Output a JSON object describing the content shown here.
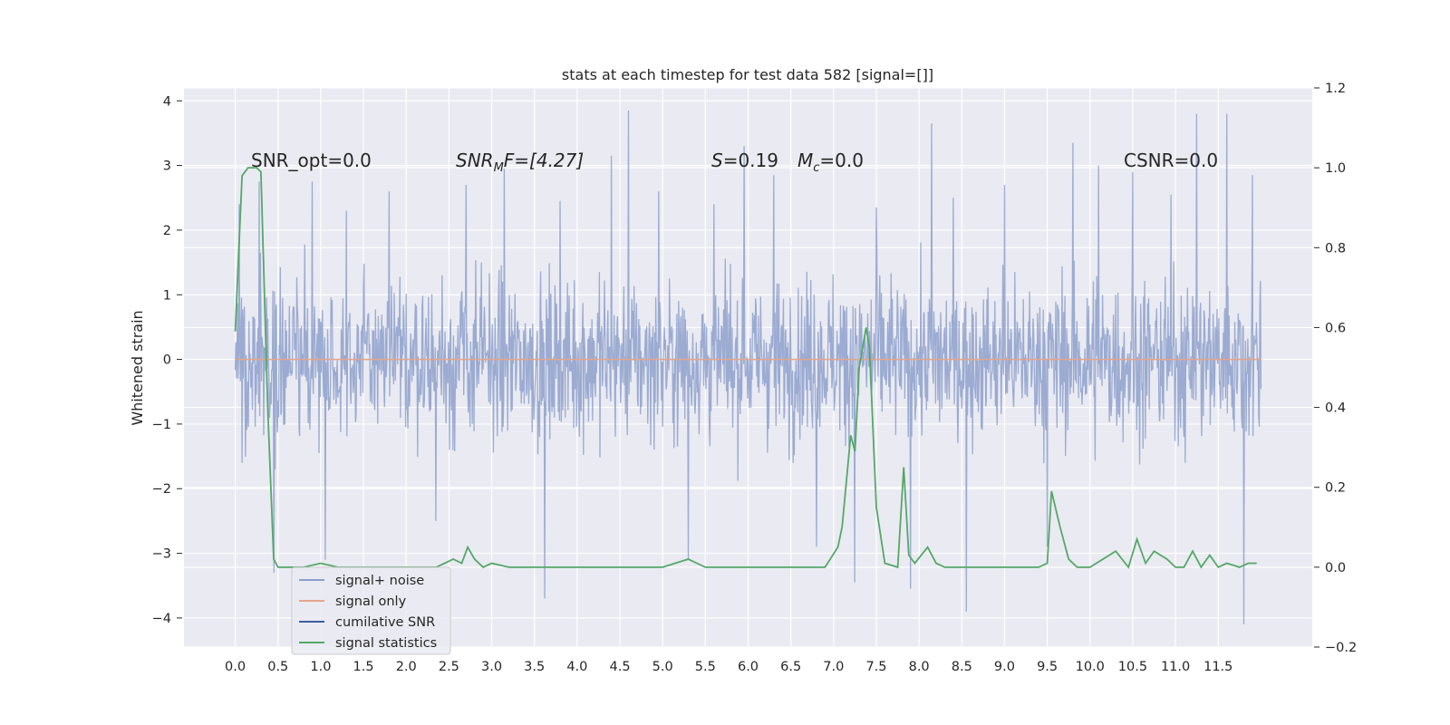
{
  "chart_data": {
    "type": "line",
    "title": "stats at each timestep for test data 582 [signal=[]]",
    "ylabel": "Whitened strain",
    "xlim": [
      -0.6,
      12.6
    ],
    "ylim": [
      -4.45,
      4.2
    ],
    "y2lim": [
      -0.2,
      1.2
    ],
    "x_ticks": [
      "0.0",
      "0.5",
      "1.0",
      "1.5",
      "2.0",
      "2.5",
      "3.0",
      "3.5",
      "4.0",
      "4.5",
      "5.0",
      "5.5",
      "6.0",
      "6.5",
      "7.0",
      "7.5",
      "8.0",
      "8.5",
      "9.0",
      "9.5",
      "10.0",
      "10.5",
      "11.0",
      "11.5"
    ],
    "y_ticks": [
      "4",
      "3",
      "2",
      "1",
      "0",
      "−1",
      "−2",
      "−3",
      "−4"
    ],
    "y2_ticks": [
      "1.2",
      "1.0",
      "0.8",
      "0.6",
      "0.4",
      "0.2",
      "0.0",
      "−0.2"
    ],
    "grid": true,
    "legend_placement": "lower-left",
    "annotations": {
      "snr_opt": "SNR_opt=0.0",
      "snr_mf_pre": "SNR",
      "snr_mf_sub": "M",
      "snr_mf_post": "F=[4.27]",
      "s_var": "S",
      "s_val": "=0.19",
      "mc_var": "M",
      "mc_sub": "c",
      "mc_val": "=0.0",
      "csnr": "CSNR=0.0"
    },
    "series": [
      {
        "name": "signal+ noise",
        "color": "#8da0cb",
        "axis": "left",
        "x_range": [
          0.0,
          12.0
        ],
        "envelope": {
          "typical_low": -1.8,
          "typical_high": 1.8
        },
        "spikes": [
          [
            0.05,
            2.4
          ],
          [
            0.08,
            -1.6
          ],
          [
            0.28,
            2.75
          ],
          [
            0.45,
            -3.3
          ],
          [
            0.9,
            2.75
          ],
          [
            1.05,
            -3.1
          ],
          [
            1.3,
            2.3
          ],
          [
            1.8,
            2.6
          ],
          [
            2.35,
            -2.5
          ],
          [
            2.7,
            2.7
          ],
          [
            3.15,
            2.95
          ],
          [
            3.62,
            -3.7
          ],
          [
            3.8,
            2.45
          ],
          [
            4.4,
            3.15
          ],
          [
            4.6,
            3.85
          ],
          [
            4.95,
            2.6
          ],
          [
            5.3,
            -3.1
          ],
          [
            5.6,
            2.4
          ],
          [
            5.95,
            3.3
          ],
          [
            6.3,
            2.85
          ],
          [
            6.8,
            -2.9
          ],
          [
            7.25,
            -3.45
          ],
          [
            7.5,
            2.35
          ],
          [
            7.9,
            -3.55
          ],
          [
            8.15,
            3.65
          ],
          [
            8.4,
            2.5
          ],
          [
            8.55,
            -3.9
          ],
          [
            9.0,
            2.7
          ],
          [
            9.5,
            -2.9
          ],
          [
            9.8,
            3.35
          ],
          [
            10.1,
            3.0
          ],
          [
            10.5,
            2.9
          ],
          [
            10.95,
            2.55
          ],
          [
            11.25,
            3.8
          ],
          [
            11.6,
            3.8
          ],
          [
            11.8,
            -4.1
          ],
          [
            11.9,
            2.85
          ]
        ]
      },
      {
        "name": "signal only",
        "color": "#e5a58a",
        "axis": "left",
        "x": [
          0.0,
          12.0
        ],
        "y": [
          0.0,
          0.0
        ]
      },
      {
        "name": "cumilative SNR",
        "color": "#3a5fa0",
        "axis": "right",
        "x": [],
        "y": []
      },
      {
        "name": "signal statistics",
        "color": "#55a868",
        "axis": "right",
        "x": [
          0.0,
          0.08,
          0.15,
          0.25,
          0.3,
          0.38,
          0.45,
          0.5,
          0.6,
          0.8,
          1.0,
          1.2,
          1.5,
          1.8,
          2.0,
          2.2,
          2.35,
          2.45,
          2.55,
          2.65,
          2.72,
          2.8,
          2.9,
          3.0,
          3.2,
          3.5,
          4.0,
          4.3,
          4.6,
          5.0,
          5.3,
          5.5,
          5.8,
          6.0,
          6.3,
          6.6,
          6.9,
          7.05,
          7.1,
          7.2,
          7.25,
          7.3,
          7.38,
          7.42,
          7.5,
          7.6,
          7.75,
          7.82,
          7.88,
          7.95,
          8.1,
          8.2,
          8.3,
          8.5,
          9.0,
          9.4,
          9.5,
          9.55,
          9.65,
          9.75,
          9.85,
          10.0,
          10.3,
          10.45,
          10.55,
          10.65,
          10.75,
          10.9,
          11.0,
          11.1,
          11.2,
          11.3,
          11.4,
          11.5,
          11.6,
          11.75,
          11.85,
          11.95
        ],
        "y": [
          0.59,
          0.98,
          1.0,
          1.0,
          0.99,
          0.4,
          0.02,
          0.0,
          0.0,
          0.0,
          0.01,
          0.0,
          0.0,
          0.0,
          0.0,
          0.0,
          0.0,
          0.01,
          0.02,
          0.01,
          0.05,
          0.02,
          0.0,
          0.01,
          0.0,
          0.0,
          0.0,
          0.0,
          0.0,
          0.0,
          0.02,
          0.0,
          0.0,
          0.0,
          0.0,
          0.0,
          0.0,
          0.05,
          0.1,
          0.33,
          0.29,
          0.5,
          0.6,
          0.55,
          0.15,
          0.01,
          0.0,
          0.25,
          0.03,
          0.01,
          0.05,
          0.01,
          0.0,
          0.0,
          0.0,
          0.0,
          0.01,
          0.19,
          0.1,
          0.02,
          0.0,
          0.0,
          0.04,
          0.0,
          0.07,
          0.01,
          0.04,
          0.02,
          0.0,
          0.0,
          0.04,
          0.0,
          0.03,
          0.0,
          0.01,
          0.0,
          0.01,
          0.01
        ]
      }
    ]
  }
}
